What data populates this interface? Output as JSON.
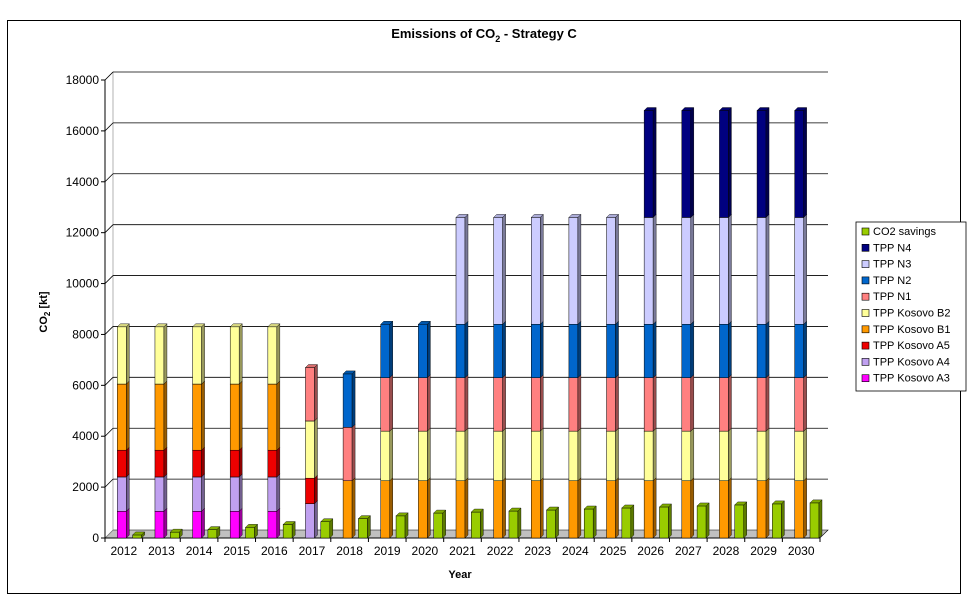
{
  "chart_data": {
    "type": "bar",
    "stacked": true,
    "title": "Emissions of CO2 - Strategy C",
    "title_parts": {
      "pre": "Emissions of CO",
      "sub": "2",
      "post": " - Strategy C"
    },
    "xlabel": "Year",
    "ylabel": "CO2 [kt]",
    "ylabel_parts": {
      "pre": "CO",
      "sub": "2",
      "post": " [kt]"
    },
    "ylim": [
      0,
      18000
    ],
    "yticks": [
      0,
      2000,
      4000,
      6000,
      8000,
      10000,
      12000,
      14000,
      16000,
      18000
    ],
    "grid": true,
    "legend_position": "right",
    "categories": [
      "2012",
      "2013",
      "2014",
      "2015",
      "2016",
      "2017",
      "2018",
      "2019",
      "2020",
      "2021",
      "2022",
      "2023",
      "2024",
      "2025",
      "2026",
      "2027",
      "2028",
      "2029",
      "2030"
    ],
    "stack_series": [
      {
        "name": "TPP Kosovo A3",
        "color": "#FF00FF",
        "values": [
          1050,
          1050,
          1050,
          1050,
          1050,
          0,
          0,
          0,
          0,
          0,
          0,
          0,
          0,
          0,
          0,
          0,
          0,
          0,
          0
        ]
      },
      {
        "name": "TPP Kosovo A4",
        "color": "#C0A0F0",
        "values": [
          1350,
          1350,
          1350,
          1350,
          1350,
          1350,
          0,
          0,
          0,
          0,
          0,
          0,
          0,
          0,
          0,
          0,
          0,
          0,
          0
        ]
      },
      {
        "name": "TPP Kosovo A5",
        "color": "#EE0000",
        "values": [
          1050,
          1050,
          1050,
          1050,
          1050,
          1000,
          0,
          0,
          0,
          0,
          0,
          0,
          0,
          0,
          0,
          0,
          0,
          0,
          0
        ]
      },
      {
        "name": "TPP Kosovo B1",
        "color": "#FF9900",
        "values": [
          2600,
          2600,
          2600,
          2600,
          2600,
          0,
          2250,
          2250,
          2250,
          2250,
          2250,
          2250,
          2250,
          2250,
          2250,
          2250,
          2250,
          2250,
          2250
        ]
      },
      {
        "name": "TPP Kosovo B2",
        "color": "#FFFF99",
        "values": [
          2250,
          2250,
          2250,
          2250,
          2250,
          2250,
          0,
          1950,
          1950,
          1950,
          1950,
          1950,
          1950,
          1950,
          1950,
          1950,
          1950,
          1950,
          1950
        ]
      },
      {
        "name": "TPP N1",
        "color": "#FF8080",
        "values": [
          0,
          0,
          0,
          0,
          0,
          2100,
          2100,
          2100,
          2100,
          2100,
          2100,
          2100,
          2100,
          2100,
          2100,
          2100,
          2100,
          2100,
          2100
        ]
      },
      {
        "name": "TPP N2",
        "color": "#0066CC",
        "values": [
          0,
          0,
          0,
          0,
          0,
          0,
          2100,
          2100,
          2100,
          2100,
          2100,
          2100,
          2100,
          2100,
          2100,
          2100,
          2100,
          2100,
          2100
        ]
      },
      {
        "name": "TPP N3",
        "color": "#CCCCFF",
        "values": [
          0,
          0,
          0,
          0,
          0,
          0,
          0,
          0,
          0,
          4200,
          4200,
          4200,
          4200,
          4200,
          4200,
          4200,
          4200,
          4200,
          4200
        ]
      },
      {
        "name": "TPP N4",
        "color": "#000080",
        "values": [
          0,
          0,
          0,
          0,
          0,
          0,
          0,
          0,
          0,
          0,
          0,
          0,
          0,
          0,
          4200,
          4200,
          4200,
          4200,
          4200
        ]
      }
    ],
    "savings_series": {
      "name": "CO2 savings",
      "color": "#99CC00",
      "values": [
        120,
        230,
        330,
        420,
        530,
        640,
        760,
        870,
        980,
        1020,
        1060,
        1100,
        1140,
        1180,
        1220,
        1260,
        1300,
        1340,
        1380
      ]
    },
    "legend": [
      "CO2 savings",
      "TPP N4",
      "TPP N3",
      "TPP N2",
      "TPP N1",
      "TPP Kosovo B2",
      "TPP Kosovo B1",
      "TPP Kosovo A5",
      "TPP Kosovo A4",
      "TPP Kosovo A3"
    ]
  }
}
